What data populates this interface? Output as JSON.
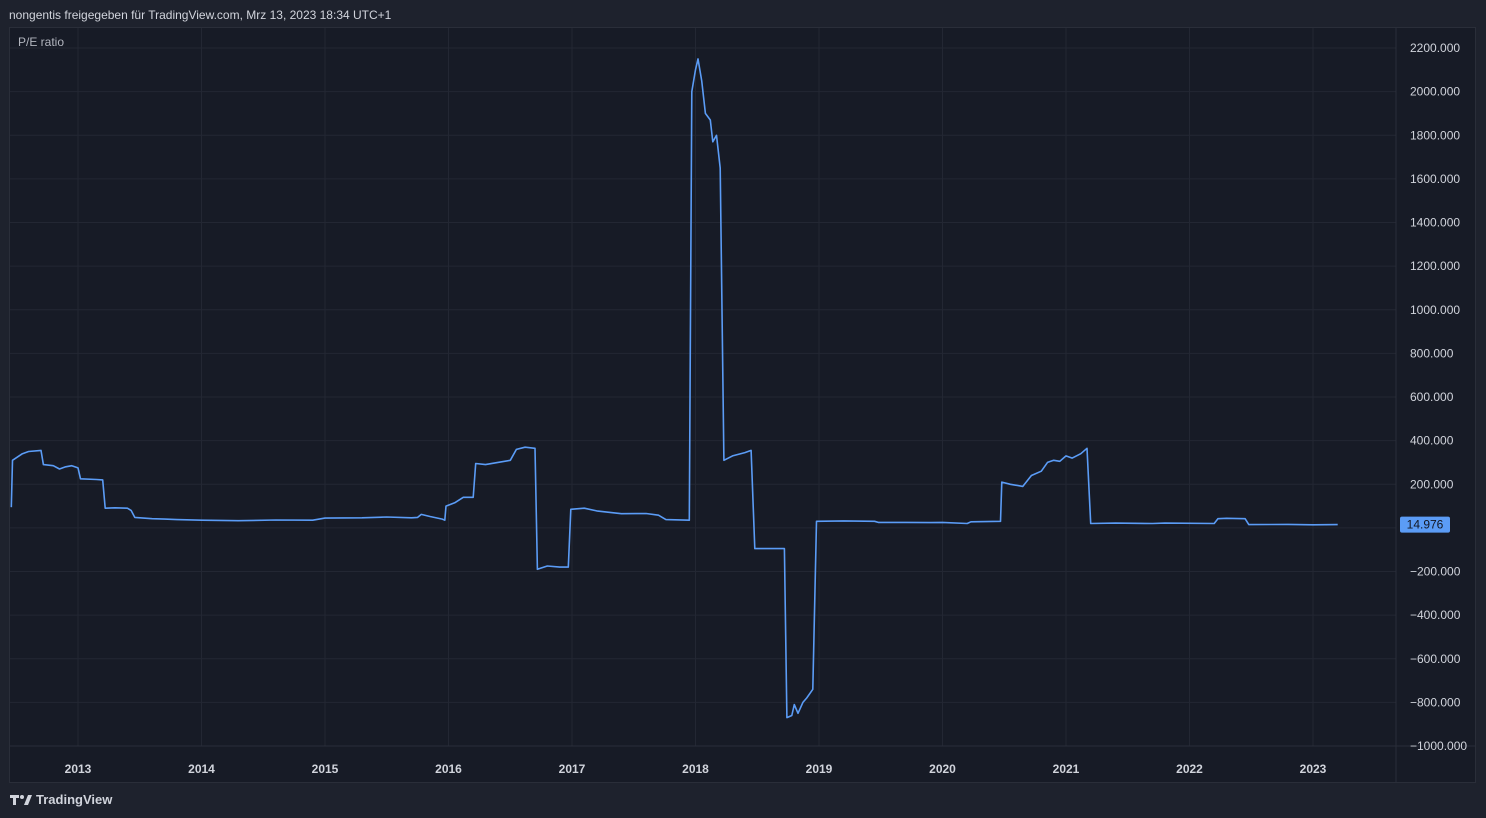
{
  "header": {
    "text": "nongentis freigegeben für TradingView.com, Mrz 13, 2023 18:34 UTC+1"
  },
  "footer": {
    "logo_icon": "tradingview-logo-icon",
    "logo_text": "TradingView"
  },
  "chart_data": {
    "type": "line",
    "title": "P/E ratio",
    "line_color": "#5b9cf6",
    "last_value_label": "14.976",
    "last_value": 14.976,
    "ylim": [
      -1000,
      2200
    ],
    "y_ticks": [
      {
        "value": 2200,
        "label": "2200.000"
      },
      {
        "value": 2000,
        "label": "2000.000"
      },
      {
        "value": 1800,
        "label": "1800.000"
      },
      {
        "value": 1600,
        "label": "1600.000"
      },
      {
        "value": 1400,
        "label": "1400.000"
      },
      {
        "value": 1200,
        "label": "1200.000"
      },
      {
        "value": 1000,
        "label": "1000.000"
      },
      {
        "value": 800,
        "label": "800.000"
      },
      {
        "value": 600,
        "label": "600.000"
      },
      {
        "value": 400,
        "label": "400.000"
      },
      {
        "value": 200,
        "label": "200.000"
      },
      {
        "value": -200,
        "label": "−200.000"
      },
      {
        "value": -400,
        "label": "−400.000"
      },
      {
        "value": -600,
        "label": "−600.000"
      },
      {
        "value": -800,
        "label": "−800.000"
      },
      {
        "value": -1000,
        "label": "−1000.000"
      }
    ],
    "x_ticks": [
      {
        "value": 2013,
        "label": "2013"
      },
      {
        "value": 2014,
        "label": "2014"
      },
      {
        "value": 2015,
        "label": "2015"
      },
      {
        "value": 2016,
        "label": "2016"
      },
      {
        "value": 2017,
        "label": "2017"
      },
      {
        "value": 2018,
        "label": "2018"
      },
      {
        "value": 2019,
        "label": "2019"
      },
      {
        "value": 2020,
        "label": "2020"
      },
      {
        "value": 2021,
        "label": "2021"
      },
      {
        "value": 2022,
        "label": "2022"
      },
      {
        "value": 2023,
        "label": "2023"
      }
    ],
    "xlim": [
      2012.45,
      2023.75
    ],
    "grid": true,
    "points": [
      [
        2012.46,
        95
      ],
      [
        2012.47,
        310
      ],
      [
        2012.55,
        340
      ],
      [
        2012.6,
        350
      ],
      [
        2012.7,
        355
      ],
      [
        2012.72,
        290
      ],
      [
        2012.8,
        285
      ],
      [
        2012.85,
        270
      ],
      [
        2012.9,
        280
      ],
      [
        2012.95,
        285
      ],
      [
        2013.0,
        275
      ],
      [
        2013.02,
        225
      ],
      [
        2013.15,
        222
      ],
      [
        2013.2,
        220
      ],
      [
        2013.22,
        90
      ],
      [
        2013.3,
        92
      ],
      [
        2013.4,
        90
      ],
      [
        2013.43,
        80
      ],
      [
        2013.46,
        48
      ],
      [
        2013.6,
        42
      ],
      [
        2013.7,
        40
      ],
      [
        2013.8,
        38
      ],
      [
        2014.0,
        35
      ],
      [
        2014.3,
        33
      ],
      [
        2014.6,
        36
      ],
      [
        2014.9,
        35
      ],
      [
        2015.0,
        45
      ],
      [
        2015.3,
        46
      ],
      [
        2015.5,
        50
      ],
      [
        2015.7,
        46
      ],
      [
        2015.75,
        48
      ],
      [
        2015.78,
        62
      ],
      [
        2015.85,
        52
      ],
      [
        2015.95,
        40
      ],
      [
        2015.97,
        35
      ],
      [
        2015.98,
        100
      ],
      [
        2016.05,
        115
      ],
      [
        2016.12,
        140
      ],
      [
        2016.2,
        140
      ],
      [
        2016.22,
        295
      ],
      [
        2016.3,
        290
      ],
      [
        2016.4,
        300
      ],
      [
        2016.5,
        310
      ],
      [
        2016.55,
        360
      ],
      [
        2016.62,
        370
      ],
      [
        2016.7,
        365
      ],
      [
        2016.72,
        -190
      ],
      [
        2016.8,
        -175
      ],
      [
        2016.9,
        -180
      ],
      [
        2016.97,
        -180
      ],
      [
        2016.99,
        85
      ],
      [
        2017.1,
        90
      ],
      [
        2017.2,
        78
      ],
      [
        2017.4,
        65
      ],
      [
        2017.6,
        66
      ],
      [
        2017.7,
        58
      ],
      [
        2017.76,
        38
      ],
      [
        2017.95,
        35
      ],
      [
        2017.97,
        2000
      ],
      [
        2018.0,
        2100
      ],
      [
        2018.02,
        2150
      ],
      [
        2018.05,
        2050
      ],
      [
        2018.08,
        1900
      ],
      [
        2018.12,
        1870
      ],
      [
        2018.14,
        1770
      ],
      [
        2018.17,
        1800
      ],
      [
        2018.2,
        1650
      ],
      [
        2018.23,
        310
      ],
      [
        2018.3,
        330
      ],
      [
        2018.4,
        345
      ],
      [
        2018.45,
        355
      ],
      [
        2018.48,
        -95
      ],
      [
        2018.6,
        -95
      ],
      [
        2018.72,
        -95
      ],
      [
        2018.74,
        -870
      ],
      [
        2018.78,
        -860
      ],
      [
        2018.8,
        -810
      ],
      [
        2018.83,
        -850
      ],
      [
        2018.87,
        -800
      ],
      [
        2018.9,
        -780
      ],
      [
        2018.95,
        -740
      ],
      [
        2018.98,
        30
      ],
      [
        2019.2,
        32
      ],
      [
        2019.45,
        30
      ],
      [
        2019.48,
        25
      ],
      [
        2019.7,
        25
      ],
      [
        2019.9,
        24
      ],
      [
        2020.0,
        25
      ],
      [
        2020.2,
        20
      ],
      [
        2020.23,
        28
      ],
      [
        2020.47,
        30
      ],
      [
        2020.48,
        210
      ],
      [
        2020.55,
        200
      ],
      [
        2020.65,
        190
      ],
      [
        2020.72,
        240
      ],
      [
        2020.8,
        260
      ],
      [
        2020.85,
        300
      ],
      [
        2020.9,
        310
      ],
      [
        2020.95,
        305
      ],
      [
        2021.0,
        330
      ],
      [
        2021.05,
        320
      ],
      [
        2021.12,
        340
      ],
      [
        2021.17,
        365
      ],
      [
        2021.2,
        20
      ],
      [
        2021.4,
        22
      ],
      [
        2021.7,
        20
      ],
      [
        2021.8,
        22
      ],
      [
        2022.2,
        20
      ],
      [
        2022.23,
        42
      ],
      [
        2022.3,
        44
      ],
      [
        2022.45,
        42
      ],
      [
        2022.48,
        15
      ],
      [
        2022.8,
        16
      ],
      [
        2023.0,
        14
      ],
      [
        2023.2,
        14.976
      ]
    ]
  }
}
